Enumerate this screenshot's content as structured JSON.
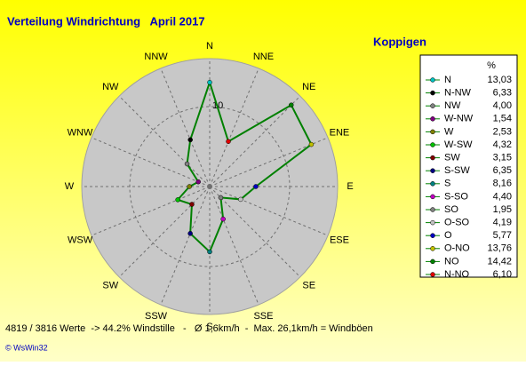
{
  "chart_data": {
    "type": "radar",
    "title": "Verteilung Windrichtung   April 2017",
    "subtitle": "Koppigen",
    "categories": [
      "N",
      "NNE",
      "NE",
      "ENE",
      "E",
      "ESE",
      "SE",
      "SSE",
      "S",
      "SSW",
      "SW",
      "WSW",
      "W",
      "WNW",
      "NW",
      "NNW"
    ],
    "legend_header": "%",
    "line_color": "#008000",
    "rlim": [
      0,
      16
    ],
    "rticks": [
      10
    ],
    "points": [
      {
        "name": "N",
        "color": "#00c0c0",
        "value": 13.03,
        "value_label": "13,03"
      },
      {
        "name": "N-NW",
        "color": "#000000",
        "value": 6.33,
        "value_label": "6,33"
      },
      {
        "name": "NW",
        "color": "#808080",
        "value": 4.0,
        "value_label": "4,00"
      },
      {
        "name": "W-NW",
        "color": "#800080",
        "value": 1.54,
        "value_label": "1,54"
      },
      {
        "name": "W",
        "color": "#808000",
        "value": 2.53,
        "value_label": "2,53"
      },
      {
        "name": "W-SW",
        "color": "#00c000",
        "value": 4.32,
        "value_label": "4,32"
      },
      {
        "name": "SW",
        "color": "#800000",
        "value": 3.15,
        "value_label": "3,15"
      },
      {
        "name": "S-SW",
        "color": "#000080",
        "value": 6.35,
        "value_label": "6,35"
      },
      {
        "name": "S",
        "color": "#008080",
        "value": 8.16,
        "value_label": "8,16"
      },
      {
        "name": "S-SO",
        "color": "#c000c0",
        "value": 4.4,
        "value_label": "4,40"
      },
      {
        "name": "SO",
        "color": "#808080",
        "value": 1.95,
        "value_label": "1,95"
      },
      {
        "name": "O-SO",
        "color": "#c0c0c0",
        "value": 4.19,
        "value_label": "4,19"
      },
      {
        "name": "O",
        "color": "#0000c0",
        "value": 5.77,
        "value_label": "5,77"
      },
      {
        "name": "O-NO",
        "color": "#c0c000",
        "value": 13.76,
        "value_label": "13,76"
      },
      {
        "name": "NO",
        "color": "#008000",
        "value": 14.42,
        "value_label": "14,42"
      },
      {
        "name": "N-NO",
        "color": "#e00000",
        "value": 6.1,
        "value_label": "6,10"
      }
    ],
    "footer": "4819 / 3816 Werte  -> 44.2% Windstille   -   Ø 1,6km/h  -  Max. 26,1km/h = Windböen",
    "copyright": "© WsWin32"
  }
}
